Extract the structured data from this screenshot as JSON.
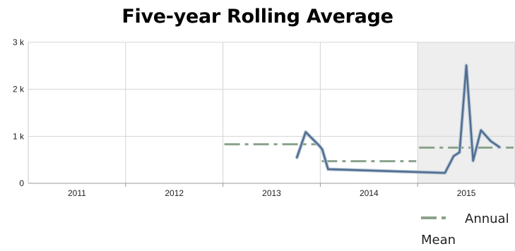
{
  "chart_data": {
    "type": "line",
    "title": "Five-year Rolling Average",
    "xlabel": "",
    "ylabel": "",
    "x_categories": [
      "2011",
      "2012",
      "2013",
      "2014",
      "2015"
    ],
    "ylim": [
      0,
      3000
    ],
    "y_ticks": [
      0,
      1000,
      2000,
      3000
    ],
    "y_tick_labels": [
      "0",
      "1 k",
      "2 k",
      "3 k"
    ],
    "grid": true,
    "highlight_band": {
      "from": 2014.5,
      "to": 2015.5,
      "color": "#eeeeee"
    },
    "series": [
      {
        "name": "",
        "style": "solid",
        "color": "#4f6d8f",
        "points": [
          [
            2013.26,
            550
          ],
          [
            2013.35,
            1090
          ],
          [
            2013.49,
            800
          ],
          [
            2013.52,
            720
          ],
          [
            2013.58,
            300
          ],
          [
            2014.78,
            220
          ],
          [
            2014.87,
            580
          ],
          [
            2014.93,
            660
          ],
          [
            2015.0,
            2510
          ],
          [
            2015.07,
            480
          ],
          [
            2015.15,
            1130
          ],
          [
            2015.25,
            900
          ],
          [
            2015.34,
            770
          ]
        ]
      },
      {
        "name": "Annual Mean",
        "style": "dashdot",
        "color": "#8aa38c",
        "segments": [
          {
            "x": [
              2012.5,
              2013.5
            ],
            "y": 830
          },
          {
            "x": [
              2013.5,
              2014.5
            ],
            "y": 470
          },
          {
            "x": [
              2014.5,
              2015.5
            ],
            "y": 760
          }
        ]
      }
    ],
    "legend": {
      "position": "bottom-right",
      "entries": [
        "Annual Mean"
      ]
    }
  }
}
